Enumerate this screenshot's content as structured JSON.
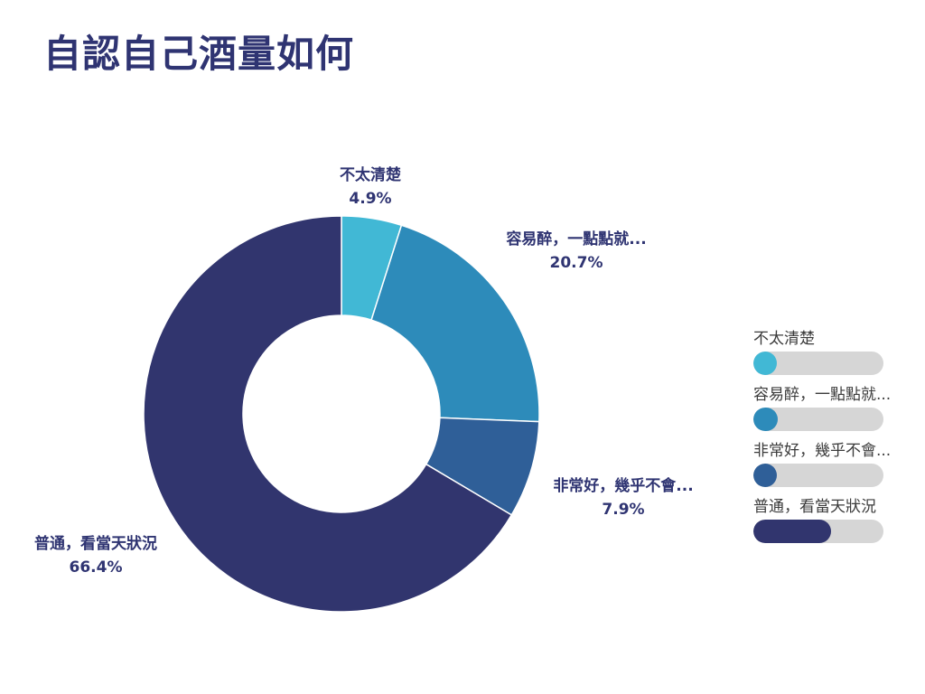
{
  "title": "自認自己酒量如何",
  "chart_data": {
    "type": "pie",
    "title": "自認自己酒量如何",
    "slices": [
      {
        "label": "不太清楚",
        "value": 4.9,
        "value_label": "4.9%",
        "color": "#41b8d5"
      },
      {
        "label": "容易醉，一點點就...",
        "value": 20.7,
        "value_label": "20.7%",
        "color": "#2d8bba"
      },
      {
        "label": "非常好，幾乎不會...",
        "value": 7.9,
        "value_label": "7.9%",
        "color": "#2f5f98"
      },
      {
        "label": "普通，看當天狀況",
        "value": 66.4,
        "value_label": "66.4%",
        "color": "#31356e"
      }
    ],
    "legend": {
      "position": "right"
    }
  }
}
